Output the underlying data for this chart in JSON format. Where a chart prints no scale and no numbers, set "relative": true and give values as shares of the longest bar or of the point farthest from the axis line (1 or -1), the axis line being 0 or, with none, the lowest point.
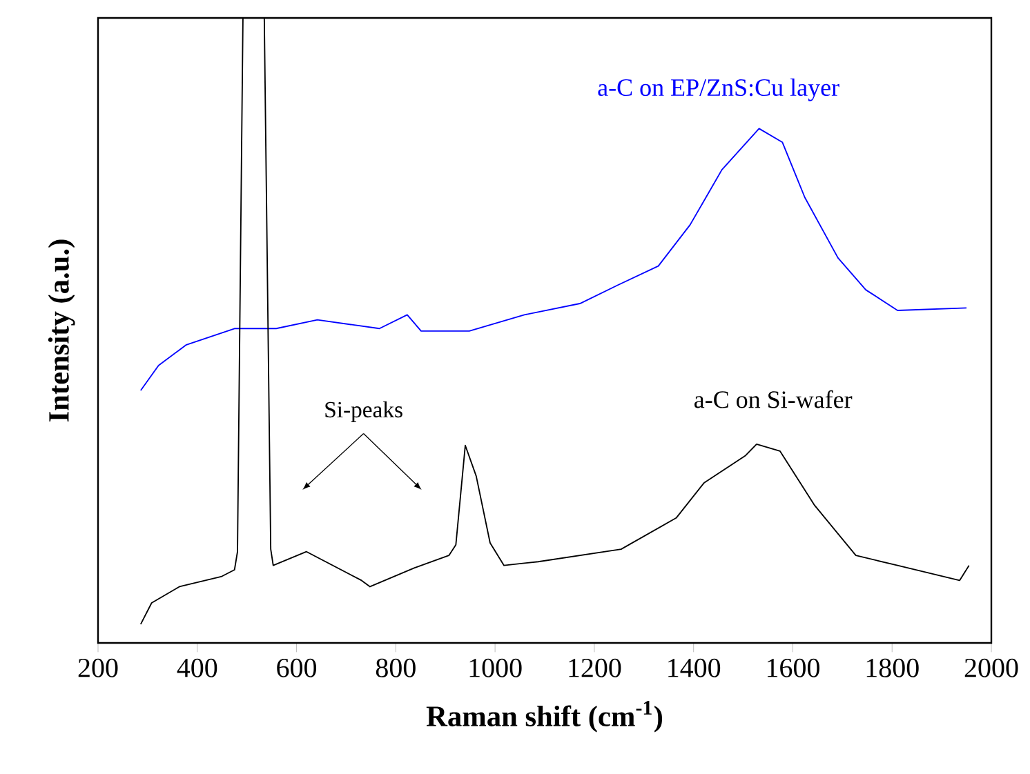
{
  "chart_data": {
    "type": "line",
    "relative": true,
    "xlabel": "Raman shift (cm$^{-1}$)",
    "ylabel": "Intensity (a.u.)",
    "xlim": [
      200,
      2000
    ],
    "xticks": [
      200,
      400,
      600,
      800,
      1000,
      1200,
      1400,
      1600,
      1800,
      2000
    ],
    "grid": false,
    "line_style": "solid",
    "annotations": [
      "Si-peaks"
    ],
    "series": [
      {
        "name": "a-C on EP/ZnS:Cu layer",
        "color": "#0000ff",
        "x": [
          286,
          322,
          378,
          475,
          559,
          642,
          767,
          823,
          851,
          948,
          1059,
          1171,
          1246,
          1329,
          1393,
          1457,
          1532,
          1579,
          1624,
          1691,
          1747,
          1811,
          1950
        ],
        "values": [
          0.404,
          0.444,
          0.477,
          0.503,
          0.503,
          0.517,
          0.503,
          0.525,
          0.499,
          0.499,
          0.525,
          0.543,
          0.572,
          0.603,
          0.669,
          0.757,
          0.823,
          0.801,
          0.713,
          0.616,
          0.565,
          0.532,
          0.536
        ]
      },
      {
        "name": "a-C on Si-wafer",
        "color": "#000000",
        "x": [
          286,
          308,
          364,
          448,
          475,
          481,
          492,
          535,
          548,
          553,
          620,
          731,
          748,
          837,
          907,
          921,
          940,
          962,
          990,
          1018,
          1087,
          1254,
          1365,
          1421,
          1505,
          1527,
          1574,
          1644,
          1727,
          1811,
          1936,
          1955
        ],
        "values": [
          0.03,
          0.064,
          0.09,
          0.106,
          0.117,
          0.146,
          1.0,
          1.0,
          0.15,
          0.124,
          0.146,
          0.1,
          0.09,
          0.12,
          0.14,
          0.157,
          0.316,
          0.267,
          0.16,
          0.124,
          0.13,
          0.15,
          0.2,
          0.256,
          0.3,
          0.318,
          0.307,
          0.22,
          0.14,
          0.124,
          0.1,
          0.124
        ]
      }
    ]
  }
}
